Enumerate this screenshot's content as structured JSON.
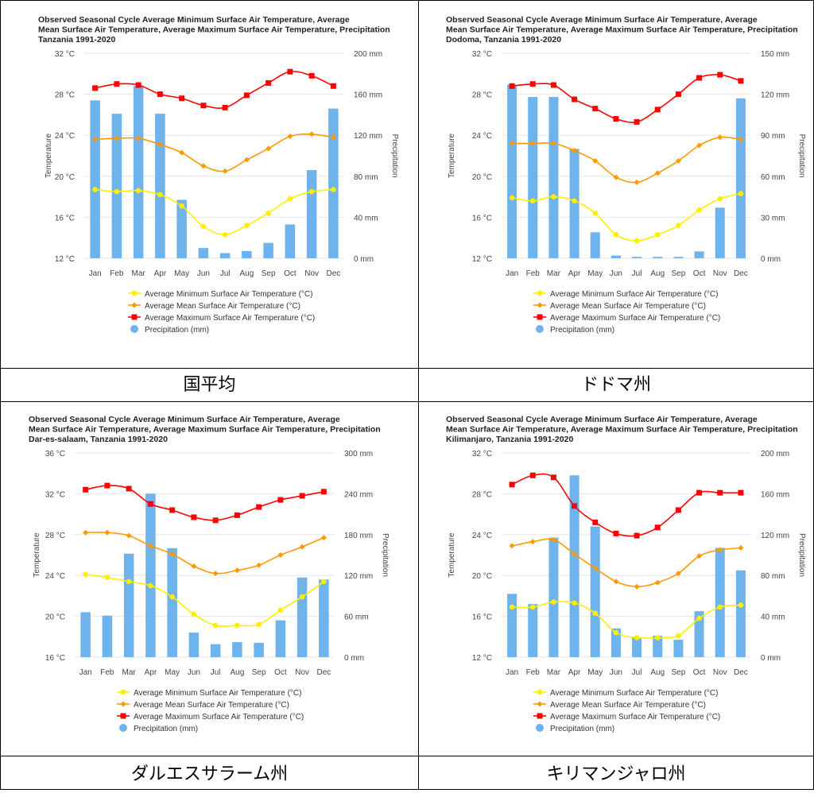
{
  "colors": {
    "min": "#ffee00",
    "mean": "#ff9900",
    "max": "#ff0000",
    "precip": "#6fb3ec",
    "grid": "#e6e6e6",
    "tick": "#444444"
  },
  "legend_labels": [
    "Average Minimum Surface Air Temperature (°C)",
    "Average Mean Surface Air Temperature (°C)",
    "Average Maximum Surface Air Temperature (°C)",
    "Precipitation (mm)"
  ],
  "chart_data": [
    {
      "type": "bar",
      "caption": "国平均",
      "title_lines": [
        "Observed Seasonal Cycle Average Minimum Surface Air Temperature, Average",
        "Mean Surface Air Temperature, Average Maximum Surface Air Temperature, Precipitation",
        " Tanzania 1991-2020"
      ],
      "categories": [
        "Jan",
        "Feb",
        "Mar",
        "Apr",
        "May",
        "Jun",
        "Jul",
        "Aug",
        "Sep",
        "Oct",
        "Nov",
        "Dec"
      ],
      "ylabel": "Temperature",
      "y2label": "Precipitation",
      "ylim": [
        12,
        32
      ],
      "yticks": [
        "32 °C",
        "28 °C",
        "24 °C",
        "20 °C",
        "16 °C",
        "12 °C"
      ],
      "y2lim": [
        0,
        200
      ],
      "y2ticks": [
        "200 mm",
        "160 mm",
        "120 mm",
        "80 mm",
        "40 mm",
        "0 mm"
      ],
      "series": [
        {
          "name": "Average Minimum Surface Air Temperature (°C)",
          "kind": "min",
          "values": [
            18.7,
            18.5,
            18.6,
            18.2,
            17.1,
            15.1,
            14.3,
            15.2,
            16.4,
            17.8,
            18.5,
            18.7
          ]
        },
        {
          "name": "Average Mean Surface Air Temperature (°C)",
          "kind": "mean",
          "values": [
            23.6,
            23.7,
            23.7,
            23.1,
            22.3,
            21.0,
            20.5,
            21.6,
            22.7,
            23.9,
            24.1,
            23.8
          ]
        },
        {
          "name": "Average Maximum Surface Air Temperature (°C)",
          "kind": "max",
          "values": [
            28.6,
            29.0,
            28.9,
            28.0,
            27.6,
            26.9,
            26.7,
            27.9,
            29.1,
            30.2,
            29.8,
            28.8
          ]
        },
        {
          "name": "Precipitation (mm)",
          "kind": "precip",
          "values": [
            154,
            141,
            168,
            141,
            57,
            10,
            5,
            7,
            15,
            33,
            86,
            146
          ]
        }
      ]
    },
    {
      "type": "bar",
      "caption": "ドドマ州",
      "title_lines": [
        "Observed Seasonal Cycle Average Minimum Surface Air Temperature, Average",
        "Mean Surface Air Temperature, Average Maximum Surface Air Temperature, Precipitation",
        " Dodoma, Tanzania 1991-2020"
      ],
      "categories": [
        "Jan",
        "Feb",
        "Mar",
        "Apr",
        "May",
        "Jun",
        "Jul",
        "Aug",
        "Sep",
        "Oct",
        "Nov",
        "Dec"
      ],
      "ylabel": "Temperature",
      "y2label": "Precipitation",
      "ylim": [
        12,
        32
      ],
      "yticks": [
        "32 °C",
        "28 °C",
        "24 °C",
        "20 °C",
        "16 °C",
        "12 °C"
      ],
      "y2lim": [
        0,
        150
      ],
      "y2ticks": [
        "150 mm",
        "120 mm",
        "90 mm",
        "60 mm",
        "30 mm",
        "0 mm"
      ],
      "series": [
        {
          "name": "Average Minimum Surface Air Temperature (°C)",
          "kind": "min",
          "values": [
            17.9,
            17.6,
            18.0,
            17.6,
            16.4,
            14.3,
            13.7,
            14.3,
            15.2,
            16.7,
            17.8,
            18.3
          ]
        },
        {
          "name": "Average Mean Surface Air Temperature (°C)",
          "kind": "mean",
          "values": [
            23.2,
            23.2,
            23.2,
            22.5,
            21.5,
            19.9,
            19.4,
            20.3,
            21.5,
            23.0,
            23.8,
            23.6
          ]
        },
        {
          "name": "Average Maximum Surface Air Temperature (°C)",
          "kind": "max",
          "values": [
            28.8,
            29.0,
            28.9,
            27.5,
            26.6,
            25.6,
            25.3,
            26.5,
            28.0,
            29.6,
            29.9,
            29.3
          ]
        },
        {
          "name": "Precipitation (mm)",
          "kind": "precip",
          "values": [
            127,
            118,
            118,
            80,
            19,
            2,
            1,
            1,
            1,
            5,
            37,
            117
          ]
        }
      ]
    },
    {
      "type": "bar",
      "caption": "ダルエスサラーム州",
      "title_lines": [
        "Observed Seasonal Cycle Average Minimum Surface Air Temperature, Average",
        "Mean Surface Air Temperature, Average Maximum Surface Air Temperature, Precipitation",
        " Dar-es-salaam, Tanzania 1991-2020"
      ],
      "categories": [
        "Jan",
        "Feb",
        "Mar",
        "Apr",
        "May",
        "Jun",
        "Jul",
        "Aug",
        "Sep",
        "Oct",
        "Nov",
        "Dec"
      ],
      "ylabel": "Temperature",
      "y2label": "Precipitation",
      "ylim": [
        16,
        36
      ],
      "yticks": [
        "36 °C",
        "32 °C",
        "28 °C",
        "24 °C",
        "20 °C",
        "16 °C"
      ],
      "y2lim": [
        0,
        300
      ],
      "y2ticks": [
        "300 mm",
        "240 mm",
        "180 mm",
        "120 mm",
        "60 mm",
        "0 mm"
      ],
      "series": [
        {
          "name": "Average Minimum Surface Air Temperature (°C)",
          "kind": "min",
          "values": [
            24.1,
            23.8,
            23.4,
            23.0,
            21.9,
            20.2,
            19.1,
            19.1,
            19.2,
            20.6,
            21.9,
            23.4
          ]
        },
        {
          "name": "Average Mean Surface Air Temperature (°C)",
          "kind": "mean",
          "values": [
            28.2,
            28.2,
            27.9,
            26.9,
            26.1,
            24.9,
            24.2,
            24.5,
            25.0,
            26.0,
            26.8,
            27.7
          ]
        },
        {
          "name": "Average Maximum Surface Air Temperature (°C)",
          "kind": "max",
          "values": [
            32.4,
            32.8,
            32.5,
            31.0,
            30.4,
            29.7,
            29.4,
            29.9,
            30.7,
            31.4,
            31.8,
            32.2
          ]
        },
        {
          "name": "Precipitation (mm)",
          "kind": "precip",
          "values": [
            66,
            61,
            152,
            240,
            160,
            36,
            19,
            22,
            21,
            54,
            117,
            114
          ]
        }
      ]
    },
    {
      "type": "bar",
      "caption": "キリマンジャロ州",
      "title_lines": [
        "Observed Seasonal Cycle Average Minimum Surface Air Temperature, Average",
        "Mean Surface Air Temperature, Average Maximum Surface Air Temperature, Precipitation",
        " Kilimanjaro, Tanzania 1991-2020"
      ],
      "categories": [
        "Jan",
        "Feb",
        "Mar",
        "Apr",
        "May",
        "Jun",
        "Jul",
        "Aug",
        "Sep",
        "Oct",
        "Nov",
        "Dec"
      ],
      "ylabel": "Temperature",
      "y2label": "Precipitation",
      "ylim": [
        12,
        32
      ],
      "yticks": [
        "32 °C",
        "28 °C",
        "24 °C",
        "20 °C",
        "16 °C",
        "12 °C"
      ],
      "y2lim": [
        0,
        200
      ],
      "y2ticks": [
        "200 mm",
        "160 mm",
        "120 mm",
        "80 mm",
        "40 mm",
        "0 mm"
      ],
      "series": [
        {
          "name": "Average Minimum Surface Air Temperature (°C)",
          "kind": "min",
          "values": [
            16.9,
            16.9,
            17.4,
            17.3,
            16.3,
            14.4,
            13.9,
            13.9,
            14.1,
            15.8,
            16.9,
            17.1
          ]
        },
        {
          "name": "Average Mean Surface Air Temperature (°C)",
          "kind": "mean",
          "values": [
            22.9,
            23.3,
            23.5,
            22.1,
            20.7,
            19.4,
            18.9,
            19.3,
            20.2,
            21.9,
            22.5,
            22.7
          ]
        },
        {
          "name": "Average Maximum Surface Air Temperature (°C)",
          "kind": "max",
          "values": [
            28.9,
            29.8,
            29.6,
            26.8,
            25.2,
            24.1,
            23.9,
            24.7,
            26.4,
            28.1,
            28.1,
            28.1
          ]
        },
        {
          "name": "Precipitation (mm)",
          "kind": "precip",
          "values": [
            62,
            52,
            117,
            178,
            128,
            28,
            19,
            21,
            17,
            45,
            107,
            85
          ]
        }
      ]
    }
  ]
}
